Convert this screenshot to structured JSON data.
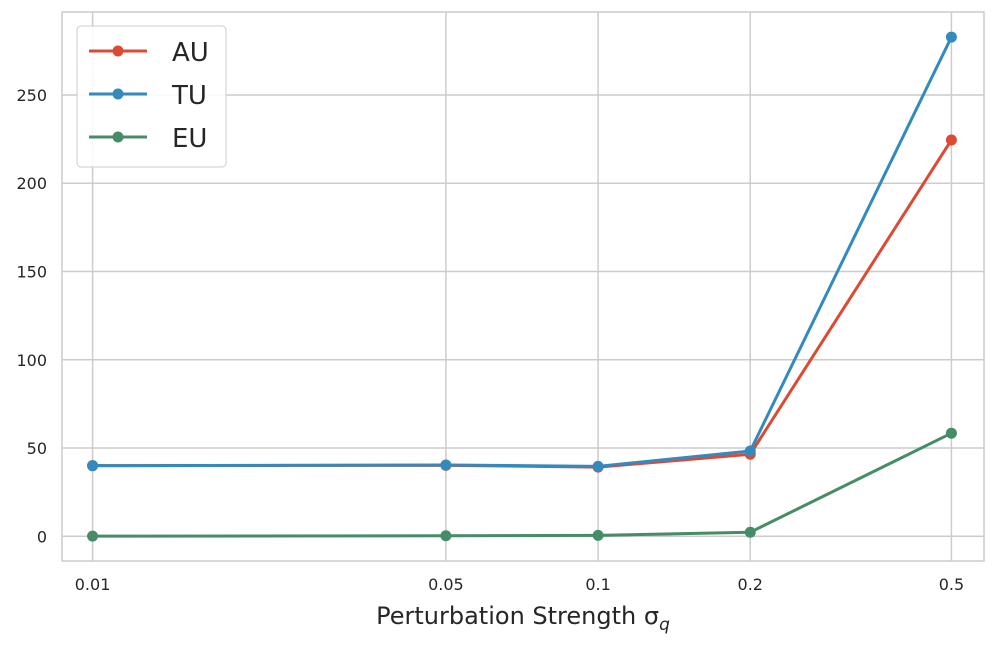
{
  "chart_data": {
    "type": "line",
    "xlabel": "Perturbation Strength σ",
    "xlabel_sub": "q",
    "x": [
      0.01,
      0.05,
      0.1,
      0.2,
      0.5
    ],
    "x_tick_labels": [
      "0.01",
      "0.05",
      "0.1",
      "0.2",
      "0.5"
    ],
    "x_scale": "log",
    "xlim": [
      0.0087,
      0.58
    ],
    "ylim": [
      -14,
      297
    ],
    "y_ticks": [
      0,
      50,
      100,
      150,
      200,
      250
    ],
    "grid": true,
    "legend_position": "upper-left",
    "series": [
      {
        "name": "AU",
        "color": "#dc4a33",
        "values": [
          40.0,
          40.2,
          39.2,
          46.5,
          224.5
        ]
      },
      {
        "name": "TU",
        "color": "#348abd",
        "values": [
          40.0,
          40.4,
          39.6,
          48.3,
          282.8
        ]
      },
      {
        "name": "EU",
        "color": "#468c66",
        "values": [
          0.1,
          0.3,
          0.5,
          2.3,
          58.4
        ]
      }
    ]
  }
}
